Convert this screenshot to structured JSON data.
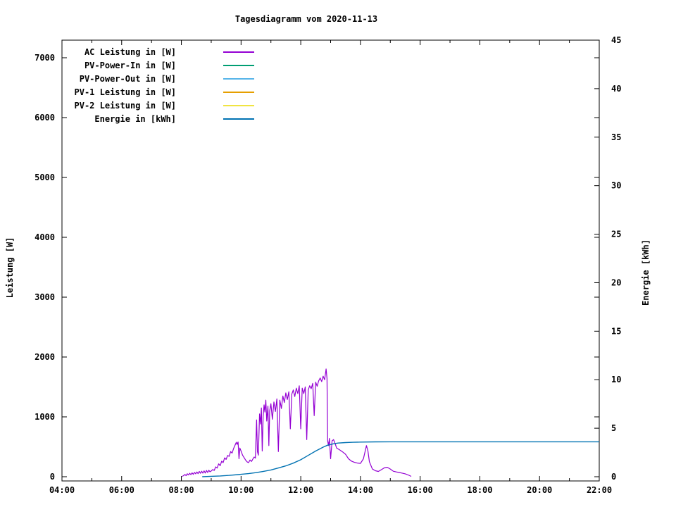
{
  "chart_data": {
    "type": "line",
    "title": "Tagesdiagramm vom 2020-11-13",
    "background_color": "#ffffff",
    "axis_color": "#000000",
    "legend_position": "top-left, no box, right-aligned labels with line samples",
    "grid": false,
    "axes": {
      "x": {
        "unit": "time",
        "range_hours": [
          4,
          22
        ],
        "major_tick_hours": [
          4,
          6,
          8,
          10,
          12,
          14,
          16,
          18,
          20,
          22
        ],
        "major_tick_labels": [
          "04:00",
          "06:00",
          "08:00",
          "10:00",
          "12:00",
          "14:00",
          "16:00",
          "18:00",
          "20:00",
          "22:00"
        ],
        "minor_tick_hours": [
          5,
          7,
          9,
          11,
          13,
          15,
          17,
          19,
          21
        ]
      },
      "y_left": {
        "label": "Leistung [W]",
        "ticks": [
          0,
          1000,
          2000,
          3000,
          4000,
          5000,
          6000,
          7000
        ],
        "tick_labels": [
          "0",
          "1000",
          "2000",
          "3000",
          "4000",
          "5000",
          "6000",
          "7000"
        ],
        "range": [
          0,
          7300
        ]
      },
      "y_right": {
        "label": "Energie [kWh]",
        "ticks": [
          0,
          5,
          10,
          15,
          20,
          25,
          30,
          35,
          40,
          45
        ],
        "tick_labels": [
          "0",
          "5",
          "10",
          "15",
          "20",
          "25",
          "30",
          "35",
          "40",
          "45"
        ],
        "range": [
          0,
          45
        ]
      }
    },
    "series": [
      {
        "name": "AC Leistung in [W]",
        "color": "#9400D3",
        "axis": "left",
        "points": [
          [
            8.03,
            5
          ],
          [
            8.08,
            20
          ],
          [
            8.12,
            38
          ],
          [
            8.16,
            18
          ],
          [
            8.2,
            50
          ],
          [
            8.24,
            30
          ],
          [
            8.28,
            58
          ],
          [
            8.32,
            35
          ],
          [
            8.36,
            65
          ],
          [
            8.4,
            40
          ],
          [
            8.44,
            72
          ],
          [
            8.48,
            48
          ],
          [
            8.52,
            80
          ],
          [
            8.56,
            52
          ],
          [
            8.6,
            88
          ],
          [
            8.64,
            58
          ],
          [
            8.68,
            92
          ],
          [
            8.72,
            60
          ],
          [
            8.76,
            98
          ],
          [
            8.8,
            62
          ],
          [
            8.84,
            105
          ],
          [
            8.88,
            70
          ],
          [
            8.92,
            108
          ],
          [
            8.96,
            82
          ],
          [
            9.0,
            95
          ],
          [
            9.05,
            120
          ],
          [
            9.1,
            105
          ],
          [
            9.15,
            165
          ],
          [
            9.2,
            145
          ],
          [
            9.25,
            215
          ],
          [
            9.3,
            185
          ],
          [
            9.35,
            260
          ],
          [
            9.4,
            235
          ],
          [
            9.45,
            315
          ],
          [
            9.5,
            290
          ],
          [
            9.55,
            355
          ],
          [
            9.6,
            340
          ],
          [
            9.65,
            420
          ],
          [
            9.7,
            395
          ],
          [
            9.75,
            470
          ],
          [
            9.8,
            530
          ],
          [
            9.84,
            575
          ],
          [
            9.87,
            540
          ],
          [
            9.9,
            580
          ],
          [
            9.93,
            300
          ],
          [
            9.96,
            480
          ],
          [
            10.0,
            430
          ],
          [
            10.05,
            360
          ],
          [
            10.1,
            320
          ],
          [
            10.15,
            280
          ],
          [
            10.2,
            250
          ],
          [
            10.25,
            235
          ],
          [
            10.3,
            280
          ],
          [
            10.35,
            255
          ],
          [
            10.4,
            300
          ],
          [
            10.44,
            330
          ],
          [
            10.48,
            310
          ],
          [
            10.52,
            950
          ],
          [
            10.55,
            420
          ],
          [
            10.58,
            360
          ],
          [
            10.62,
            1050
          ],
          [
            10.65,
            880
          ],
          [
            10.68,
            1150
          ],
          [
            10.71,
            430
          ],
          [
            10.74,
            1000
          ],
          [
            10.77,
            1200
          ],
          [
            10.8,
            1080
          ],
          [
            10.83,
            1280
          ],
          [
            10.86,
            930
          ],
          [
            10.9,
            1180
          ],
          [
            10.93,
            520
          ],
          [
            10.96,
            1100
          ],
          [
            11.0,
            1220
          ],
          [
            11.05,
            960
          ],
          [
            11.1,
            1250
          ],
          [
            11.15,
            1090
          ],
          [
            11.2,
            1300
          ],
          [
            11.25,
            420
          ],
          [
            11.3,
            1280
          ],
          [
            11.35,
            1140
          ],
          [
            11.4,
            1350
          ],
          [
            11.45,
            1240
          ],
          [
            11.5,
            1400
          ],
          [
            11.55,
            1290
          ],
          [
            11.6,
            1420
          ],
          [
            11.65,
            800
          ],
          [
            11.7,
            1380
          ],
          [
            11.75,
            1450
          ],
          [
            11.8,
            1340
          ],
          [
            11.85,
            1480
          ],
          [
            11.9,
            1390
          ],
          [
            11.95,
            1520
          ],
          [
            12.0,
            800
          ],
          [
            12.05,
            1480
          ],
          [
            12.1,
            1390
          ],
          [
            12.15,
            1500
          ],
          [
            12.2,
            620
          ],
          [
            12.25,
            1450
          ],
          [
            12.3,
            1520
          ],
          [
            12.35,
            1470
          ],
          [
            12.4,
            1560
          ],
          [
            12.45,
            1020
          ],
          [
            12.5,
            1580
          ],
          [
            12.55,
            1510
          ],
          [
            12.6,
            1600
          ],
          [
            12.65,
            1650
          ],
          [
            12.7,
            1590
          ],
          [
            12.75,
            1680
          ],
          [
            12.8,
            1620
          ],
          [
            12.85,
            1800
          ],
          [
            12.88,
            1640
          ],
          [
            12.9,
            600
          ],
          [
            12.93,
            520
          ],
          [
            12.96,
            640
          ],
          [
            13.0,
            300
          ],
          [
            13.05,
            600
          ],
          [
            13.1,
            620
          ],
          [
            13.15,
            555
          ],
          [
            13.2,
            480
          ],
          [
            13.3,
            450
          ],
          [
            13.4,
            415
          ],
          [
            13.5,
            375
          ],
          [
            13.6,
            300
          ],
          [
            13.7,
            260
          ],
          [
            13.8,
            240
          ],
          [
            13.9,
            228
          ],
          [
            14.0,
            222
          ],
          [
            14.1,
            300
          ],
          [
            14.2,
            520
          ],
          [
            14.25,
            430
          ],
          [
            14.3,
            250
          ],
          [
            14.4,
            130
          ],
          [
            14.5,
            100
          ],
          [
            14.6,
            88
          ],
          [
            14.7,
            118
          ],
          [
            14.8,
            148
          ],
          [
            14.9,
            158
          ],
          [
            15.0,
            128
          ],
          [
            15.1,
            92
          ],
          [
            15.2,
            80
          ],
          [
            15.3,
            70
          ],
          [
            15.4,
            60
          ],
          [
            15.5,
            48
          ],
          [
            15.6,
            30
          ],
          [
            15.65,
            18
          ],
          [
            15.7,
            6
          ]
        ]
      },
      {
        "name": "PV-Power-In in [W]",
        "color": "#009E73",
        "axis": "left",
        "points": []
      },
      {
        "name": "PV-Power-Out in [W]",
        "color": "#56B4E9",
        "axis": "left",
        "points": []
      },
      {
        "name": "PV-1 Leistung in [W]",
        "color": "#E69F00",
        "axis": "left",
        "points": []
      },
      {
        "name": "PV-2 Leistung in [W]",
        "color": "#F0E442",
        "axis": "left",
        "points": []
      },
      {
        "name": "Energie in [kWh]",
        "color": "#0072B2",
        "axis": "right",
        "points": [
          [
            8.7,
            0.0
          ],
          [
            9.0,
            0.04
          ],
          [
            9.3,
            0.08
          ],
          [
            9.6,
            0.14
          ],
          [
            9.9,
            0.22
          ],
          [
            10.0,
            0.25
          ],
          [
            10.25,
            0.32
          ],
          [
            10.5,
            0.42
          ],
          [
            10.75,
            0.55
          ],
          [
            11.0,
            0.7
          ],
          [
            11.25,
            0.9
          ],
          [
            11.5,
            1.12
          ],
          [
            11.75,
            1.4
          ],
          [
            12.0,
            1.75
          ],
          [
            12.25,
            2.2
          ],
          [
            12.5,
            2.65
          ],
          [
            12.75,
            3.05
          ],
          [
            12.9,
            3.25
          ],
          [
            13.0,
            3.32
          ],
          [
            13.1,
            3.4
          ],
          [
            13.25,
            3.47
          ],
          [
            13.5,
            3.52
          ],
          [
            13.75,
            3.55
          ],
          [
            14.0,
            3.57
          ],
          [
            14.5,
            3.59
          ],
          [
            15.0,
            3.6
          ],
          [
            16.0,
            3.6
          ],
          [
            17.0,
            3.6
          ],
          [
            18.0,
            3.6
          ],
          [
            19.0,
            3.6
          ],
          [
            20.0,
            3.6
          ],
          [
            21.0,
            3.6
          ],
          [
            22.0,
            3.6
          ]
        ]
      }
    ]
  }
}
